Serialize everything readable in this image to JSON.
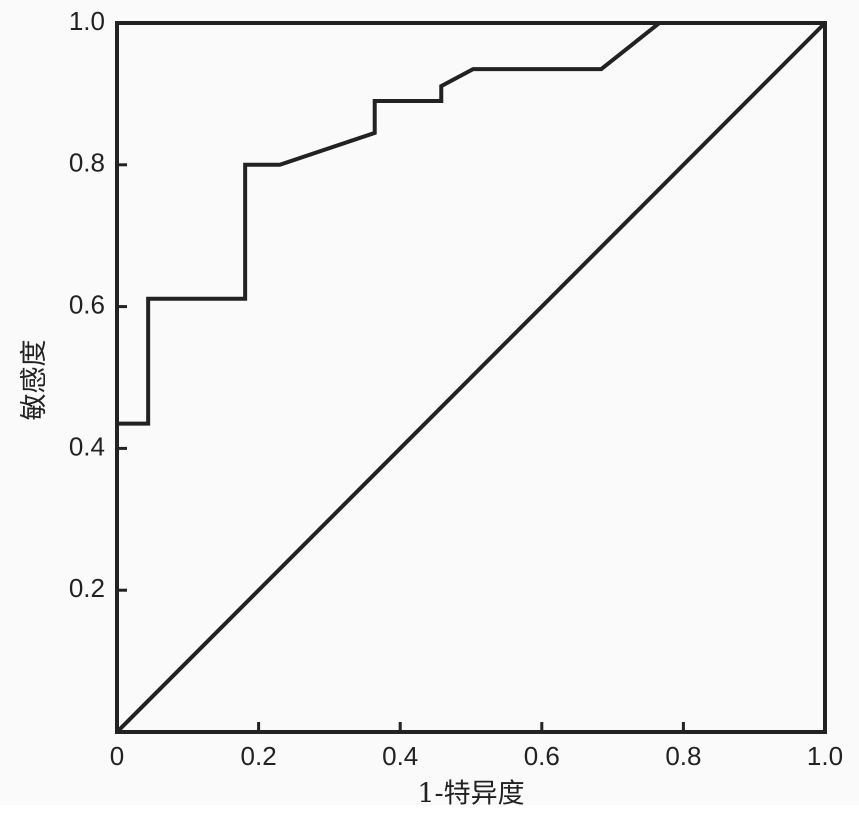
{
  "chart_data": {
    "type": "line",
    "xlabel": "1-特异度",
    "ylabel": "敏感度",
    "xlim": [
      0,
      1
    ],
    "ylim": [
      0,
      1
    ],
    "xticks": [
      0,
      0.2,
      0.4,
      0.6,
      0.8,
      {
        "value": 1,
        "label": "1.0"
      }
    ],
    "yticks": [
      0.2,
      0.4,
      0.6,
      0.8,
      {
        "value": 1,
        "label": "1.0"
      }
    ],
    "series": [
      {
        "color": "#222222",
        "x": [
          0,
          0,
          0.044,
          0.044,
          0.181,
          0.181,
          0.23,
          0.364,
          0.364,
          0.458,
          0.458,
          0.503,
          0.684,
          0.766,
          1
        ],
        "values": [
          0,
          0.435,
          0.435,
          0.611,
          0.611,
          0.8,
          0.8,
          0.845,
          0.89,
          0.89,
          0.911,
          0.935,
          0.935,
          1,
          1
        ]
      },
      {
        "color": "#222222",
        "x": [
          0,
          1
        ],
        "values": [
          0,
          1
        ]
      }
    ]
  }
}
